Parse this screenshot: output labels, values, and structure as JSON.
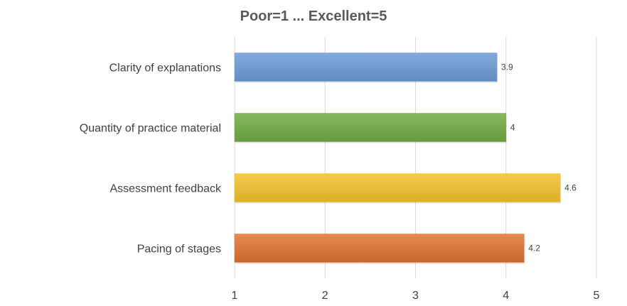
{
  "chart_data": {
    "type": "bar",
    "orientation": "horizontal",
    "title": "Poor=1 ... Excellent=5",
    "xlabel": "",
    "ylabel": "",
    "categories": [
      "Clarity of explanations",
      "Quantity of practice material",
      "Assessment feedback",
      "Pacing of stages"
    ],
    "values": [
      3.9,
      4,
      4.6,
      4.2
    ],
    "data_labels": [
      "3.9",
      "4",
      "4.6",
      "4.2"
    ],
    "colors": [
      "#6f9ad6",
      "#72ac45",
      "#f2c12e",
      "#e07433"
    ],
    "xlim": [
      1,
      5
    ],
    "xticks": [
      1,
      2,
      3,
      4,
      5
    ],
    "xtick_labels": [
      "1",
      "2",
      "3",
      "4",
      "5"
    ],
    "grid": "vertical",
    "legend": "none"
  }
}
